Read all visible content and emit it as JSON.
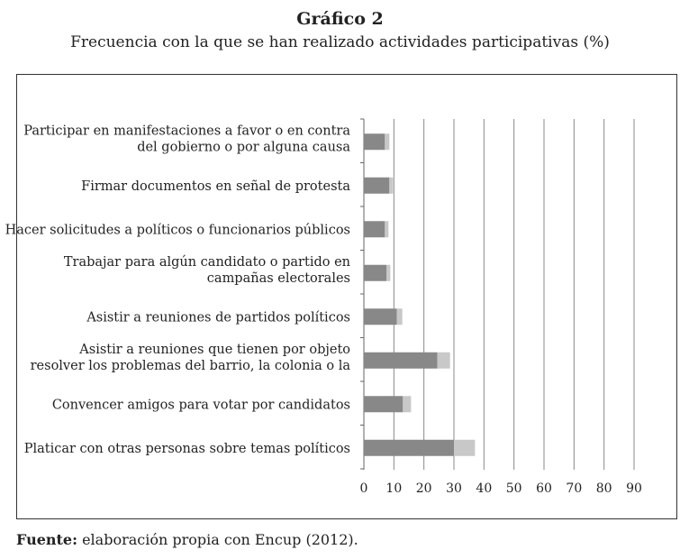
{
  "header": {
    "title": "Gráfico 2",
    "subtitle": "Frecuencia con la que se han realizado actividades participativas (%)"
  },
  "footer": {
    "source_label": "Fuente:",
    "source_text": " elaboración propia con Encup (2012)."
  },
  "colors": {
    "series_dark": "#888888",
    "series_light": "#c8c8c8",
    "gridline": "#888888",
    "axis": "#666666"
  },
  "chart_data": {
    "type": "bar",
    "orientation": "horizontal",
    "stacked": true,
    "title": "",
    "xlabel": "",
    "ylabel": "",
    "xlim": [
      0,
      90
    ],
    "xticks": [
      0,
      10,
      20,
      30,
      40,
      50,
      60,
      70,
      80,
      90
    ],
    "grid": true,
    "legend": "none",
    "categories": [
      [
        "Participar en manifestaciones a favor o en contra",
        "del gobierno o por alguna causa"
      ],
      [
        "Firmar documentos en señal de protesta"
      ],
      [
        "Hacer solicitudes a políticos o funcionarios públicos"
      ],
      [
        "Trabajar para algún candidato o partido en",
        "campañas electorales"
      ],
      [
        "Asistir a reuniones de partidos políticos"
      ],
      [
        "Asistir a reuniones que tienen por objeto",
        "resolver los problemas del barrio, la colonia o la"
      ],
      [
        "Convencer amigos para votar por candidatos"
      ],
      [
        "Platicar con otras personas sobre temas políticos"
      ]
    ],
    "series": [
      {
        "values": [
          7,
          8.5,
          7,
          7.5,
          11,
          24.5,
          13,
          30
        ]
      },
      {
        "values": [
          1.5,
          1.2,
          1.2,
          1.3,
          1.8,
          4.2,
          2.7,
          7
        ]
      }
    ]
  }
}
